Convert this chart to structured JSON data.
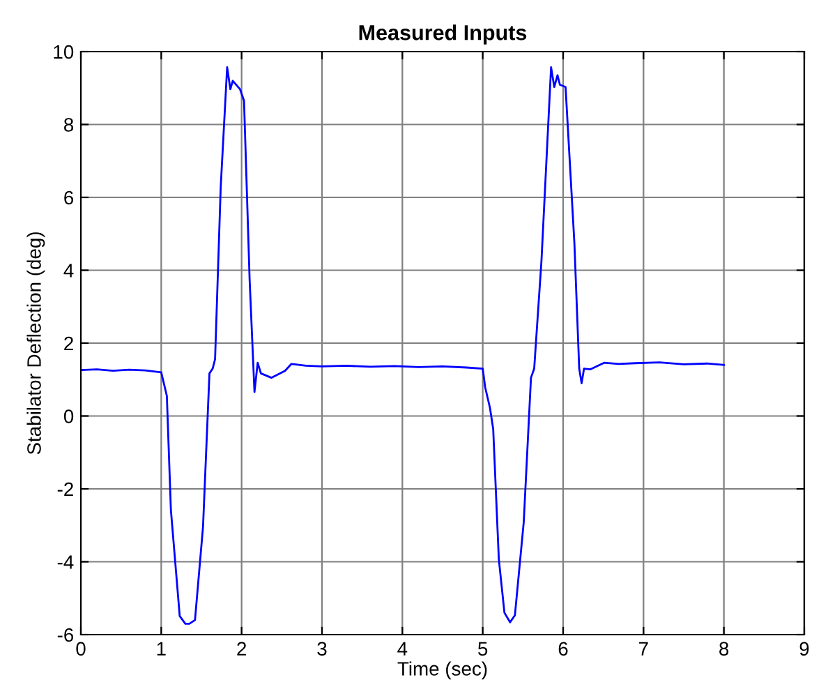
{
  "chart_data": {
    "type": "line",
    "title": "Measured Inputs",
    "xlabel": "Time (sec)",
    "ylabel": "Stabilator Deflection (deg)",
    "xlim": [
      0,
      9
    ],
    "ylim": [
      -6,
      10
    ],
    "xticks": [
      0,
      1,
      2,
      3,
      4,
      5,
      6,
      7,
      8,
      9
    ],
    "yticks": [
      -6,
      -4,
      -2,
      0,
      2,
      4,
      6,
      8,
      10
    ],
    "grid": true,
    "legend": false,
    "marker": "none",
    "line_style": "solid",
    "series": [
      {
        "color": "#0000ff",
        "x": [
          0,
          0.2,
          0.4,
          0.6,
          0.8,
          1.0,
          1.07,
          1.12,
          1.23,
          1.3,
          1.35,
          1.42,
          1.52,
          1.6,
          1.64,
          1.67,
          1.74,
          1.82,
          1.86,
          1.89,
          1.98,
          2.03,
          2.1,
          2.16,
          2.2,
          2.24,
          2.37,
          2.54,
          2.62,
          2.8,
          3.0,
          3.3,
          3.6,
          3.9,
          4.2,
          4.5,
          4.8,
          5.0,
          5.03,
          5.09,
          5.13,
          5.2,
          5.27,
          5.34,
          5.4,
          5.51,
          5.6,
          5.64,
          5.73,
          5.85,
          5.89,
          5.93,
          5.96,
          6.03,
          6.14,
          6.2,
          6.23,
          6.26,
          6.34,
          6.51,
          6.69,
          6.9,
          7.2,
          7.5,
          7.8,
          8.0
        ],
        "values": [
          1.26,
          1.28,
          1.24,
          1.27,
          1.25,
          1.2,
          0.55,
          -2.57,
          -5.49,
          -5.7,
          -5.7,
          -5.6,
          -3.04,
          1.17,
          1.3,
          1.56,
          6.28,
          9.57,
          8.97,
          9.2,
          8.97,
          8.65,
          3.73,
          0.66,
          1.46,
          1.17,
          1.05,
          1.24,
          1.43,
          1.38,
          1.36,
          1.38,
          1.35,
          1.37,
          1.34,
          1.36,
          1.33,
          1.3,
          0.79,
          0.22,
          -0.36,
          -3.93,
          -5.4,
          -5.66,
          -5.47,
          -2.91,
          1.05,
          1.3,
          4.24,
          9.57,
          9.03,
          9.35,
          9.09,
          9.03,
          4.75,
          1.3,
          0.9,
          1.3,
          1.28,
          1.46,
          1.43,
          1.45,
          1.47,
          1.42,
          1.44,
          1.4
        ]
      }
    ]
  }
}
